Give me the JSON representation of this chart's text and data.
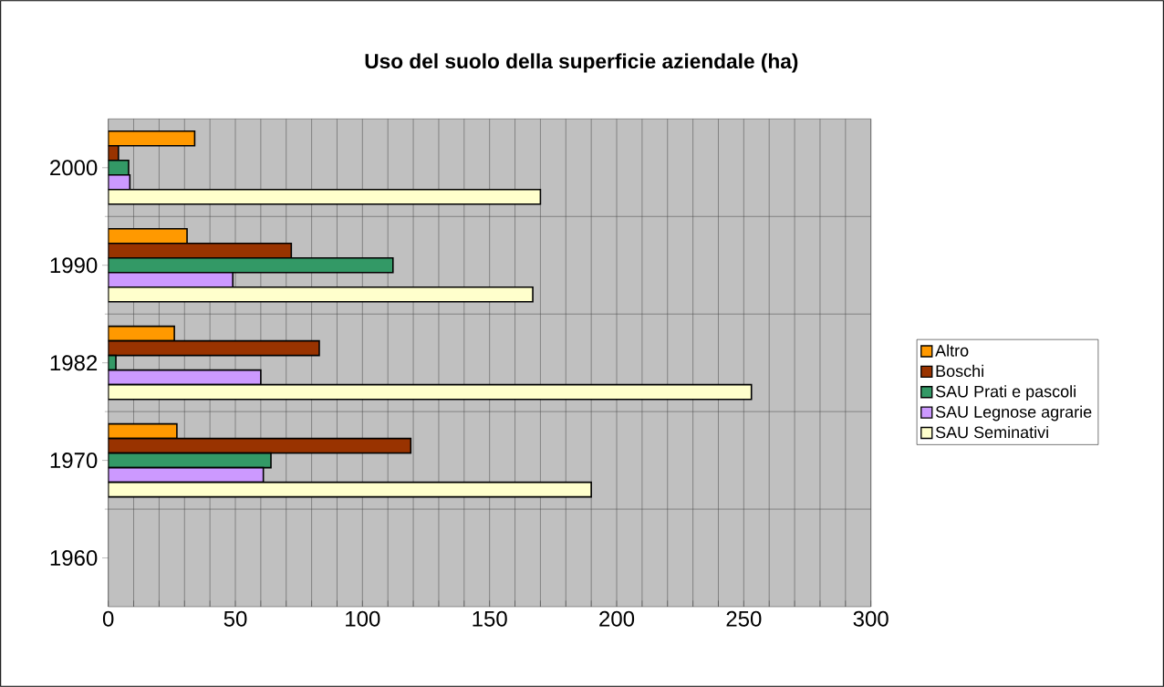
{
  "chart_data": {
    "type": "bar",
    "orientation": "horizontal",
    "title": "Uso del suolo della superficie aziendale (ha)",
    "categories": [
      "2000",
      "1990",
      "1982",
      "1970",
      "1960"
    ],
    "series": [
      {
        "name": "Altro",
        "color": "#ff9900",
        "values": [
          34,
          31,
          26,
          27,
          null
        ]
      },
      {
        "name": "Boschi",
        "color": "#993300",
        "values": [
          4,
          72,
          83,
          119,
          null
        ]
      },
      {
        "name": "SAU Prati e pascoli",
        "color": "#339966",
        "values": [
          8,
          112,
          3,
          64,
          null
        ]
      },
      {
        "name": "SAU Legnose agrarie",
        "color": "#cc99ff",
        "values": [
          8.5,
          49,
          60,
          61,
          null
        ]
      },
      {
        "name": "SAU Seminativi",
        "color": "#ffffcc",
        "values": [
          170,
          167,
          253,
          190,
          null
        ]
      }
    ],
    "xlim": [
      0,
      300
    ],
    "xticks": [
      0,
      {
        "value": 10,
        "label": null
      },
      {
        "value": 20,
        "label": null
      },
      {
        "value": 30,
        "label": null
      },
      {
        "value": 40,
        "label": null
      },
      50,
      {
        "value": 60,
        "label": null
      },
      {
        "value": 70,
        "label": null
      },
      {
        "value": 80,
        "label": null
      },
      {
        "value": 90,
        "label": null
      },
      100,
      {
        "value": 110,
        "label": null
      },
      {
        "value": 120,
        "label": null
      },
      {
        "value": 130,
        "label": null
      },
      {
        "value": 140,
        "label": null
      },
      150,
      {
        "value": 160,
        "label": null
      },
      {
        "value": 170,
        "label": null
      },
      {
        "value": 180,
        "label": null
      },
      {
        "value": 190,
        "label": null
      },
      200,
      {
        "value": 210,
        "label": null
      },
      {
        "value": 220,
        "label": null
      },
      {
        "value": 230,
        "label": null
      },
      {
        "value": 240,
        "label": null
      },
      250,
      {
        "value": 260,
        "label": null
      },
      {
        "value": 270,
        "label": null
      },
      {
        "value": 280,
        "label": null
      },
      {
        "value": 290,
        "label": null
      },
      300
    ],
    "grid": true,
    "legend": "right"
  }
}
